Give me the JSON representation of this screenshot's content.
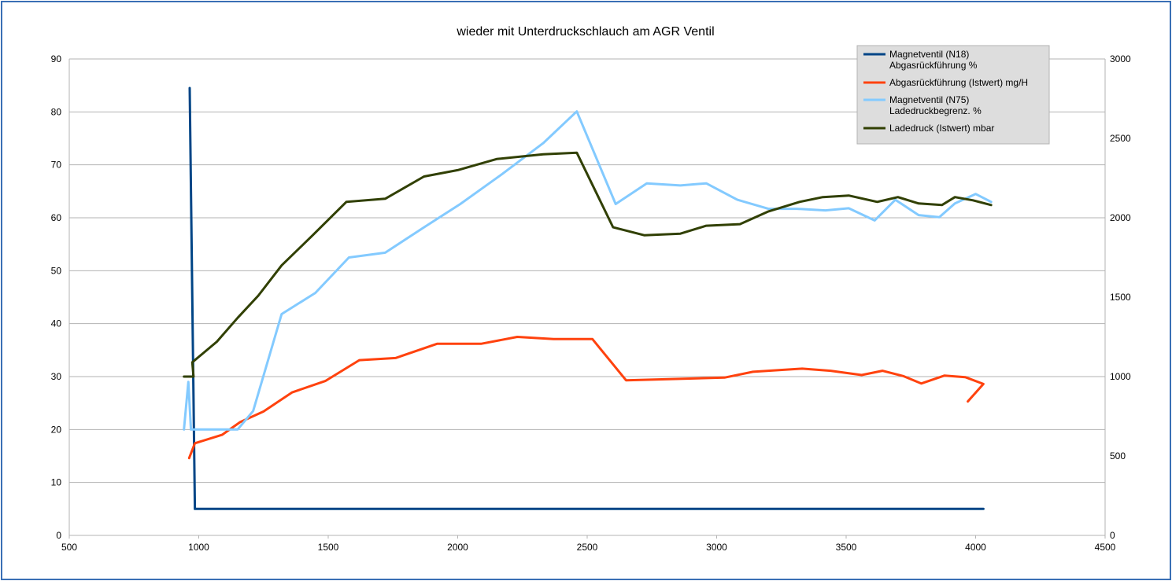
{
  "chart_data": {
    "type": "line",
    "title": "wieder mit Unterdruckschlauch am AGR Ventil",
    "xlabel": "",
    "ylabel": "",
    "y2label": "",
    "xlim": [
      500,
      4500
    ],
    "ylim": [
      0,
      90
    ],
    "y2lim": [
      0,
      3000
    ],
    "x_ticks": [
      "500",
      "1000",
      "1500",
      "2000",
      "2500",
      "3000",
      "3500",
      "4000",
      "4500"
    ],
    "y_ticks": [
      "0",
      "10",
      "20",
      "30",
      "40",
      "50",
      "60",
      "70",
      "80",
      "90"
    ],
    "y2_ticks": [
      "0",
      "500",
      "1000",
      "1500",
      "2000",
      "2500",
      "3000"
    ],
    "grid": true,
    "legend_position": "top-right",
    "series": [
      {
        "name": "Magnetventil (N18)\nAbgasrückführung  %",
        "color": "#004586",
        "axis": "left",
        "points": [
          [
            965,
            84.5
          ],
          [
            985,
            5
          ],
          [
            4030,
            5
          ]
        ]
      },
      {
        "name": "Abgasrückführung (Istwert)  mg/H",
        "color": "#ff420e",
        "axis": "left",
        "points": [
          [
            963,
            14.6
          ],
          [
            985,
            17.4
          ],
          [
            1090,
            19
          ],
          [
            1160,
            21.4
          ],
          [
            1250,
            23.4
          ],
          [
            1360,
            27
          ],
          [
            1490,
            29.2
          ],
          [
            1620,
            33.1
          ],
          [
            1760,
            33.5
          ],
          [
            1920,
            36.2
          ],
          [
            2090,
            36.2
          ],
          [
            2230,
            37.5
          ],
          [
            2370,
            37.1
          ],
          [
            2520,
            37.1
          ],
          [
            2650,
            29.3
          ],
          [
            2870,
            29.6
          ],
          [
            3030,
            29.8
          ],
          [
            3140,
            30.9
          ],
          [
            3330,
            31.5
          ],
          [
            3440,
            31.1
          ],
          [
            3560,
            30.3
          ],
          [
            3640,
            31.1
          ],
          [
            3720,
            30.1
          ],
          [
            3790,
            28.7
          ],
          [
            3880,
            30.2
          ],
          [
            3960,
            29.9
          ],
          [
            4030,
            28.6
          ],
          [
            3970,
            25.3
          ]
        ]
      },
      {
        "name": "Magnetventil (N75)\nLadedruckbegrenz.  %",
        "color": "#83caff",
        "axis": "left",
        "points": [
          [
            943,
            20
          ],
          [
            960,
            29
          ],
          [
            970,
            20
          ],
          [
            1150,
            20
          ],
          [
            1210,
            23.5
          ],
          [
            1320,
            41.8
          ],
          [
            1450,
            45.8
          ],
          [
            1580,
            52.5
          ],
          [
            1720,
            53.4
          ],
          [
            1870,
            58.2
          ],
          [
            2010,
            62.6
          ],
          [
            2170,
            68.2
          ],
          [
            2330,
            74.1
          ],
          [
            2460,
            80.1
          ],
          [
            2610,
            62.6
          ],
          [
            2730,
            66.5
          ],
          [
            2860,
            66.1
          ],
          [
            2960,
            66.5
          ],
          [
            3080,
            63.4
          ],
          [
            3200,
            61.7
          ],
          [
            3310,
            61.7
          ],
          [
            3420,
            61.4
          ],
          [
            3510,
            61.8
          ],
          [
            3610,
            59.5
          ],
          [
            3690,
            63.4
          ],
          [
            3780,
            60.5
          ],
          [
            3860,
            60.1
          ],
          [
            3920,
            62.7
          ],
          [
            4000,
            64.5
          ],
          [
            4060,
            63
          ]
        ]
      },
      {
        "name": "Ladedruck (Istwert)  mbar",
        "color": "#314004",
        "axis": "right",
        "points": [
          [
            943,
            1000
          ],
          [
            980,
            1000
          ],
          [
            975,
            1090
          ],
          [
            1070,
            1220
          ],
          [
            1150,
            1370
          ],
          [
            1230,
            1510
          ],
          [
            1320,
            1700
          ],
          [
            1440,
            1890
          ],
          [
            1570,
            2100
          ],
          [
            1720,
            2120
          ],
          [
            1870,
            2260
          ],
          [
            2000,
            2300
          ],
          [
            2150,
            2370
          ],
          [
            2330,
            2400
          ],
          [
            2460,
            2410
          ],
          [
            2600,
            1940
          ],
          [
            2720,
            1890
          ],
          [
            2860,
            1900
          ],
          [
            2960,
            1950
          ],
          [
            3090,
            1960
          ],
          [
            3200,
            2040
          ],
          [
            3320,
            2100
          ],
          [
            3410,
            2130
          ],
          [
            3510,
            2140
          ],
          [
            3620,
            2100
          ],
          [
            3700,
            2130
          ],
          [
            3780,
            2090
          ],
          [
            3870,
            2080
          ],
          [
            3920,
            2130
          ],
          [
            3990,
            2110
          ],
          [
            4060,
            2080
          ]
        ]
      }
    ]
  }
}
